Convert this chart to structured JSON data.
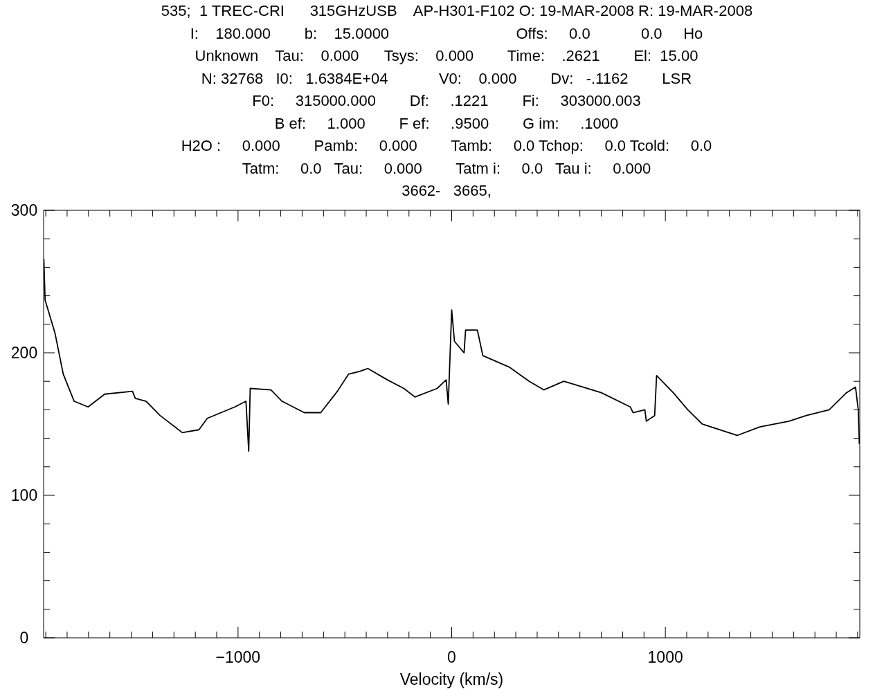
{
  "chart_data": {
    "type": "line",
    "xlabel": "Velocity (km/s)",
    "annotations": [
      "535;  1 TREC-CRI      315GHzUSB    AP-H301-F102 O: 19-MAR-2008 R: 19-MAR-2008",
      "I:    180.000        b:    15.0000                              Offs:     0.0            0.0     Ho",
      "Unknown    Tau:    0.000      Tsys:    0.000        Time:    .2621        El:  15.00",
      "N: 32768   I0:   1.6384E+04            V0:    0.000        Dv:   -.1162        LSR",
      "F0:     315000.000        Df:     .1221        Fi:     303000.003",
      "B ef:     1.000        F ef:     .9500        G im:     .1000",
      "H2O :     0.000        Pamb:     0.000        Tamb:     0.0 Tchop:     0.0 Tcold:     0.0",
      "Tatm:     0.0   Tau:     0.000        Tatm i:     0.0   Tau i:     0.000",
      "3662-   3665,"
    ],
    "xlim": [
      -1910,
      1910
    ],
    "xticks": [
      {
        "value": -1900,
        "label": null
      },
      {
        "value": -1800,
        "label": null
      },
      {
        "value": -1700,
        "label": null
      },
      {
        "value": -1600,
        "label": null
      },
      {
        "value": -1500,
        "label": null
      },
      {
        "value": -1400,
        "label": null
      },
      {
        "value": -1300,
        "label": null
      },
      {
        "value": -1200,
        "label": null
      },
      {
        "value": -1100,
        "label": null
      },
      -1000,
      {
        "value": -900,
        "label": null
      },
      {
        "value": -800,
        "label": null
      },
      {
        "value": -700,
        "label": null
      },
      {
        "value": -600,
        "label": null
      },
      {
        "value": -500,
        "label": null
      },
      {
        "value": -400,
        "label": null
      },
      {
        "value": -300,
        "label": null
      },
      {
        "value": -200,
        "label": null
      },
      {
        "value": -100,
        "label": null
      },
      0,
      {
        "value": 100,
        "label": null
      },
      {
        "value": 200,
        "label": null
      },
      {
        "value": 300,
        "label": null
      },
      {
        "value": 400,
        "label": null
      },
      {
        "value": 500,
        "label": null
      },
      {
        "value": 600,
        "label": null
      },
      {
        "value": 700,
        "label": null
      },
      {
        "value": 800,
        "label": null
      },
      {
        "value": 900,
        "label": null
      },
      1000,
      {
        "value": 1100,
        "label": null
      },
      {
        "value": 1200,
        "label": null
      },
      {
        "value": 1300,
        "label": null
      },
      {
        "value": 1400,
        "label": null
      },
      {
        "value": 1500,
        "label": null
      },
      {
        "value": 1600,
        "label": null
      },
      {
        "value": 1700,
        "label": null
      },
      {
        "value": 1800,
        "label": null
      },
      {
        "value": 1900,
        "label": null
      }
    ],
    "ylim": [
      0,
      300
    ],
    "yticks": [
      0,
      {
        "value": 20,
        "label": null
      },
      {
        "value": 40,
        "label": null
      },
      {
        "value": 60,
        "label": null
      },
      {
        "value": 80,
        "label": null
      },
      100,
      {
        "value": 120,
        "label": null
      },
      {
        "value": 140,
        "label": null
      },
      {
        "value": 160,
        "label": null
      },
      {
        "value": 180,
        "label": null
      },
      200,
      {
        "value": 220,
        "label": null
      },
      {
        "value": 240,
        "label": null
      },
      {
        "value": 260,
        "label": null
      },
      {
        "value": 280,
        "label": null
      },
      300
    ],
    "series": [
      {
        "color": "#000000",
        "x": [
          -1909,
          -1903,
          -1857,
          -1818,
          -1767,
          -1702,
          -1624,
          -1494,
          -1481,
          -1430,
          -1365,
          -1261,
          -1183,
          -1144,
          -1015,
          -963,
          -950,
          -943,
          -846,
          -794,
          -690,
          -613,
          -535,
          -483,
          -431,
          -392,
          -301,
          -224,
          -172,
          -68,
          -26,
          -16,
          0,
          13,
          58,
          65,
          120,
          146,
          269,
          363,
          431,
          525,
          700,
          836,
          849,
          904,
          911,
          950,
          959,
          1037,
          1105,
          1173,
          1336,
          1442,
          1579,
          1660,
          1767,
          1848,
          1890,
          1903,
          1908
        ],
        "values": [
          266,
          237,
          214,
          185,
          166,
          162,
          171,
          173,
          168,
          166,
          156,
          144,
          146,
          154,
          162,
          166,
          131,
          175,
          174,
          166,
          158,
          158,
          173,
          185,
          187,
          189,
          181,
          175,
          169,
          175,
          181,
          164,
          230,
          208,
          200,
          216,
          216,
          198,
          190,
          180,
          174,
          180,
          172,
          162,
          158,
          160,
          152,
          156,
          184,
          172,
          160,
          150,
          142,
          148,
          152,
          156,
          160,
          172,
          176,
          160,
          136
        ]
      }
    ]
  }
}
